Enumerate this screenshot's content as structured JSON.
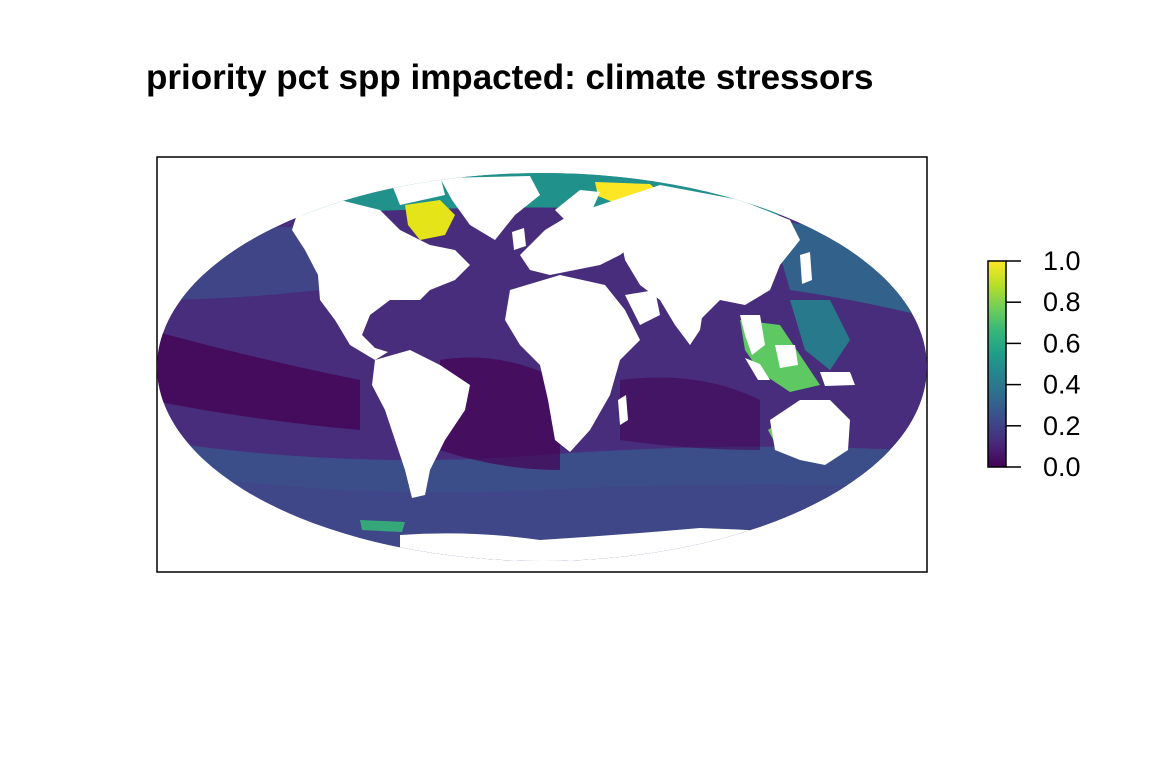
{
  "title": "priority pct spp impacted: climate stressors",
  "colorbar": {
    "min": 0.0,
    "max": 1.0,
    "ticks": [
      {
        "value": 0.0,
        "label": "0.0"
      },
      {
        "value": 0.2,
        "label": "0.2"
      },
      {
        "value": 0.4,
        "label": "0.4"
      },
      {
        "value": 0.6,
        "label": "0.6"
      },
      {
        "value": 0.8,
        "label": "0.8"
      },
      {
        "value": 1.0,
        "label": "1.0"
      }
    ],
    "palette": [
      "#440154",
      "#482878",
      "#3e4989",
      "#31688e",
      "#26828e",
      "#1f9e89",
      "#35b779",
      "#6ece58",
      "#b5de2b",
      "#fde725"
    ]
  },
  "map": {
    "projection": "Mollweide",
    "land_color": "#ffffff",
    "ocean_base_value": 0.1
  }
}
